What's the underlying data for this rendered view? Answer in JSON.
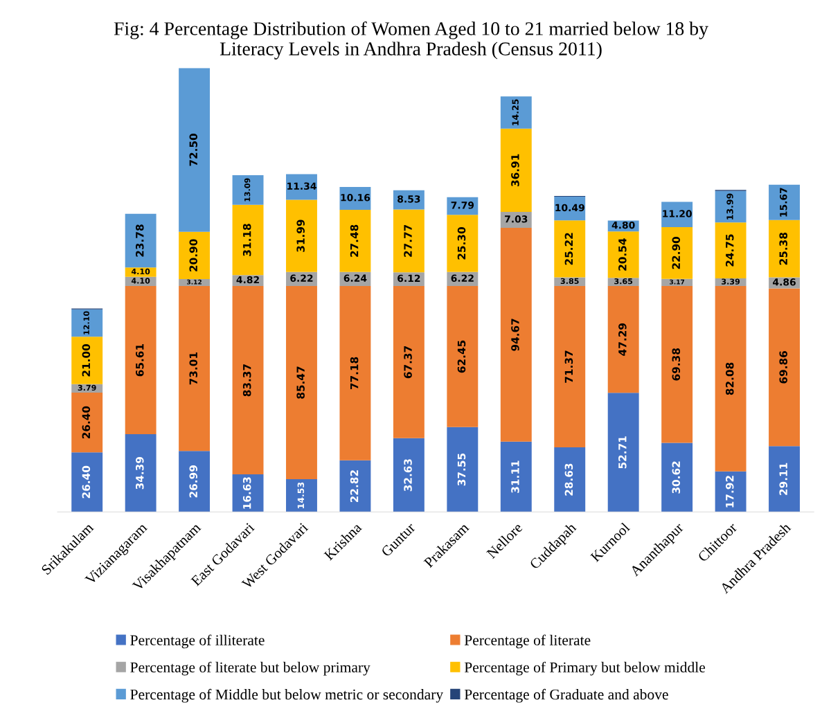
{
  "chart_data": {
    "type": "bar",
    "title": "Fig: 4 Percentage Distribution of Women Aged 10 to 21 married below 18 by\nLiteracy Levels in Andhra Pradesh (Census 2011)",
    "categories": [
      "Srikakulam",
      "Vizianagaram",
      "Visakhapatnam",
      "East Godavari",
      "West Godavari",
      "Krishna",
      "Guntur",
      "Prakasam",
      "Nellore",
      "Cuddapah",
      "Kurnool",
      "Ananthapur",
      "Chittoor",
      "Andhra Pradesh"
    ],
    "stacked": true,
    "legend": "bottom",
    "grid": false,
    "tick_labels": "x",
    "series": [
      {
        "name": "Percentage of illiterate",
        "color": "#4472c4",
        "values": [
          26.4,
          34.39,
          26.99,
          16.63,
          14.53,
          22.82,
          32.63,
          37.55,
          31.11,
          28.63,
          52.71,
          30.62,
          17.92,
          29.11
        ],
        "value_labels": [
          "26.40",
          "34.39",
          "26.99",
          "16.63",
          "14.53",
          "22.82",
          "32.63",
          "37.55",
          "31.11",
          "28.63",
          "52.71",
          "30.62",
          "17.92",
          "29.11"
        ]
      },
      {
        "name": "Percentage of literate",
        "color": "#ed7d31",
        "values": [
          26.4,
          65.61,
          73.01,
          83.37,
          85.47,
          77.18,
          67.37,
          62.45,
          94.67,
          71.37,
          47.29,
          69.38,
          82.08,
          69.86
        ],
        "value_labels": [
          "26.40",
          "65.61",
          "73.01",
          "83.37",
          "85.47",
          "77.18",
          "67.37",
          "62.45",
          "94.67",
          "71.37",
          "47.29",
          "69.38",
          "82.08",
          "69.86"
        ]
      },
      {
        "name": "Percentage of literate but below primary",
        "color": "#a5a5a5",
        "values": [
          3.79,
          4.1,
          3.12,
          4.82,
          6.22,
          6.24,
          6.12,
          6.22,
          7.03,
          3.85,
          3.65,
          3.17,
          3.39,
          4.86
        ],
        "value_labels": [
          "3.79",
          "4.10",
          "3.12",
          "4.82",
          "6.22",
          "6.24",
          "6.12",
          "6.22",
          "7.03",
          "3.85",
          "3.65",
          "3.17",
          "3.39",
          "4.86"
        ]
      },
      {
        "name": "Percentage of Primary but below middle",
        "color": "#ffc000",
        "values": [
          21.0,
          4.1,
          20.9,
          31.18,
          31.99,
          27.48,
          27.77,
          25.3,
          36.91,
          25.22,
          20.54,
          22.9,
          24.75,
          25.38
        ],
        "value_labels": [
          "21.00",
          "4.10",
          "20.90",
          "31.18",
          "31.99",
          "27.48",
          "27.77",
          "25.30",
          "36.91",
          "25.22",
          "20.54",
          "22.90",
          "24.75",
          "25.38"
        ]
      },
      {
        "name": "Percentage of Middle but below metric or secondary",
        "color": "#5b9bd5",
        "values": [
          12.1,
          23.78,
          72.5,
          13.09,
          11.34,
          10.16,
          8.53,
          7.79,
          14.25,
          10.49,
          4.8,
          11.2,
          13.99,
          15.67
        ],
        "value_labels": [
          "12.10",
          "23.78",
          "72.50",
          "13.09",
          "11.34",
          "10.16",
          "8.53",
          "7.79",
          "14.25",
          "10.49",
          "4.80",
          "11.20",
          "13.99",
          "15.67"
        ]
      },
      {
        "name": "Percentage of Graduate and above",
        "color": "#264478",
        "values": [
          0.4,
          null,
          null,
          null,
          null,
          null,
          null,
          null,
          null,
          0.3,
          null,
          null,
          0.4,
          null
        ]
      }
    ]
  }
}
